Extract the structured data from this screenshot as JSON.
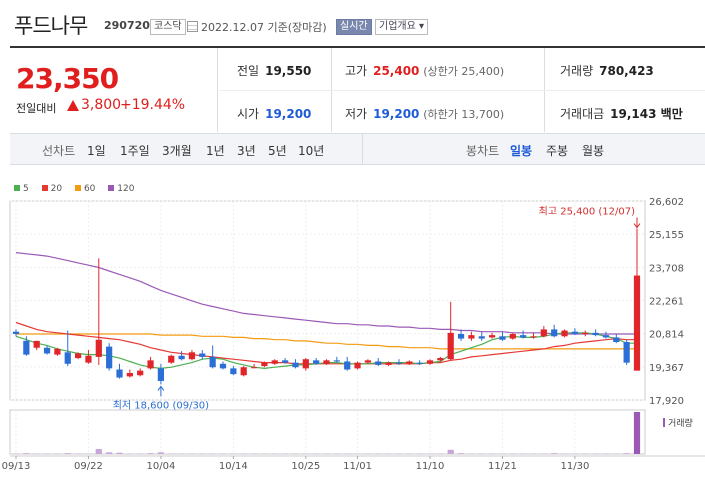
{
  "header": {
    "name": "푸드나무",
    "code": "290720",
    "market": "코스닥",
    "date": "2022.12.07 기준(장마감)",
    "realtime": "실시간",
    "company": "기업개요 ▾"
  },
  "price": {
    "current": "23,350",
    "prev_label": "전일대비",
    "change": "3,800",
    "change_pct": "+19.44%"
  },
  "stats": {
    "prev": {
      "label": "전일",
      "value": "19,550"
    },
    "high": {
      "label": "고가",
      "value": "25,400",
      "sub": "(상한가 25,400)"
    },
    "volume": {
      "label": "거래량",
      "value": "780,423"
    },
    "open": {
      "label": "시가",
      "value": "19,200"
    },
    "low": {
      "label": "저가",
      "value": "19,200",
      "sub": "(하한가 13,700)"
    },
    "amount": {
      "label": "거래대금",
      "value": "19,143 백만"
    }
  },
  "period": {
    "title": "선차트",
    "items": [
      "1일",
      "1주일",
      "3개월",
      "1년",
      "3년",
      "5년",
      "10년"
    ]
  },
  "candle": {
    "title": "봉차트",
    "items": [
      "일봉",
      "주봉",
      "월봉"
    ],
    "active": 0
  },
  "legend": [
    {
      "label": "5",
      "color": "#4caf50"
    },
    {
      "label": "20",
      "color": "#e53935"
    },
    {
      "label": "60",
      "color": "#f39c12"
    },
    {
      "label": "120",
      "color": "#9b59b6"
    }
  ],
  "volume_label": "거래량",
  "chart_data": {
    "type": "candlestick",
    "y_ticks": [
      "26,602",
      "25,155",
      "23,708",
      "22,261",
      "20,814",
      "19,367",
      "17,920"
    ],
    "ylim": [
      17920,
      26602
    ],
    "x_ticks": [
      "09/13",
      "09/22",
      "10/04",
      "10/14",
      "10/25",
      "11/01",
      "11/10",
      "11/21",
      "11/30"
    ],
    "x_tick_index": [
      0,
      7,
      14,
      21,
      28,
      33,
      40,
      47,
      54
    ],
    "high_annotation": "최고 25,400 (12/07)",
    "low_annotation": "최저 18,600 (09/30)",
    "candles": [
      {
        "o": 20900,
        "h": 21000,
        "c": 20800,
        "l": 20700
      },
      {
        "o": 20500,
        "h": 20700,
        "c": 19900,
        "l": 19850
      },
      {
        "o": 20200,
        "h": 20500,
        "c": 20500,
        "l": 20100
      },
      {
        "o": 20200,
        "h": 20300,
        "c": 19950,
        "l": 19900
      },
      {
        "o": 19900,
        "h": 20200,
        "c": 20150,
        "l": 19850
      },
      {
        "o": 20000,
        "h": 20950,
        "c": 19500,
        "l": 19400
      },
      {
        "o": 19750,
        "h": 20000,
        "c": 19950,
        "l": 19700
      },
      {
        "o": 19550,
        "h": 20100,
        "c": 19850,
        "l": 19500
      },
      {
        "o": 19800,
        "h": 24100,
        "c": 20550,
        "l": 19450
      },
      {
        "o": 20250,
        "h": 20400,
        "c": 19300,
        "l": 19200
      },
      {
        "o": 19250,
        "h": 19500,
        "c": 18900,
        "l": 18850
      },
      {
        "o": 18950,
        "h": 19250,
        "c": 19100,
        "l": 18900
      },
      {
        "o": 19000,
        "h": 19300,
        "c": 19200,
        "l": 18950
      },
      {
        "o": 19300,
        "h": 19800,
        "c": 19650,
        "l": 19250
      },
      {
        "o": 19300,
        "h": 19500,
        "c": 18750,
        "l": 18600
      },
      {
        "o": 19550,
        "h": 19900,
        "c": 19850,
        "l": 19500
      },
      {
        "o": 19850,
        "h": 20050,
        "c": 19700,
        "l": 19650
      },
      {
        "o": 19700,
        "h": 20100,
        "c": 20000,
        "l": 19650
      },
      {
        "o": 19950,
        "h": 20100,
        "c": 19800,
        "l": 19700
      },
      {
        "o": 19800,
        "h": 20300,
        "c": 19350,
        "l": 19300
      },
      {
        "o": 19500,
        "h": 19600,
        "c": 19300,
        "l": 19250
      },
      {
        "o": 19300,
        "h": 19400,
        "c": 19050,
        "l": 19000
      },
      {
        "o": 19000,
        "h": 19400,
        "c": 19350,
        "l": 18950
      },
      {
        "o": 19350,
        "h": 19500,
        "c": 19350,
        "l": 19300
      },
      {
        "o": 19400,
        "h": 19600,
        "c": 19550,
        "l": 19350
      },
      {
        "o": 19500,
        "h": 19700,
        "c": 19650,
        "l": 19450
      },
      {
        "o": 19650,
        "h": 19750,
        "c": 19550,
        "l": 19500
      },
      {
        "o": 19550,
        "h": 19700,
        "c": 19350,
        "l": 19300
      },
      {
        "o": 19300,
        "h": 19750,
        "c": 19700,
        "l": 19200
      },
      {
        "o": 19650,
        "h": 19750,
        "c": 19500,
        "l": 19450
      },
      {
        "o": 19500,
        "h": 19700,
        "c": 19650,
        "l": 19450
      },
      {
        "o": 19650,
        "h": 19800,
        "c": 19600,
        "l": 19550
      },
      {
        "o": 19600,
        "h": 19800,
        "c": 19250,
        "l": 19200
      },
      {
        "o": 19300,
        "h": 19600,
        "c": 19550,
        "l": 19250
      },
      {
        "o": 19550,
        "h": 19700,
        "c": 19650,
        "l": 19500
      },
      {
        "o": 19600,
        "h": 19750,
        "c": 19450,
        "l": 19400
      },
      {
        "o": 19450,
        "h": 19600,
        "c": 19550,
        "l": 19400
      },
      {
        "o": 19550,
        "h": 19700,
        "c": 19500,
        "l": 19450
      },
      {
        "o": 19500,
        "h": 19650,
        "c": 19600,
        "l": 19450
      },
      {
        "o": 19550,
        "h": 19650,
        "c": 19500,
        "l": 19450
      },
      {
        "o": 19500,
        "h": 19700,
        "c": 19650,
        "l": 19450
      },
      {
        "o": 19650,
        "h": 19800,
        "c": 19750,
        "l": 19600
      },
      {
        "o": 19700,
        "h": 22200,
        "c": 20850,
        "l": 19650
      },
      {
        "o": 20800,
        "h": 21000,
        "c": 20600,
        "l": 20500
      },
      {
        "o": 20600,
        "h": 20900,
        "c": 20750,
        "l": 20500
      },
      {
        "o": 20700,
        "h": 20900,
        "c": 20600,
        "l": 20500
      },
      {
        "o": 20650,
        "h": 20850,
        "c": 20750,
        "l": 20600
      },
      {
        "o": 20700,
        "h": 20900,
        "c": 20550,
        "l": 20500
      },
      {
        "o": 20600,
        "h": 20850,
        "c": 20800,
        "l": 20550
      },
      {
        "o": 20750,
        "h": 20950,
        "c": 20650,
        "l": 20600
      },
      {
        "o": 20700,
        "h": 20850,
        "c": 20700,
        "l": 20600
      },
      {
        "o": 20700,
        "h": 21150,
        "c": 21000,
        "l": 20650
      },
      {
        "o": 21000,
        "h": 21200,
        "c": 20700,
        "l": 20650
      },
      {
        "o": 20700,
        "h": 21000,
        "c": 20950,
        "l": 20650
      },
      {
        "o": 20900,
        "h": 21050,
        "c": 20800,
        "l": 20750
      },
      {
        "o": 20800,
        "h": 20950,
        "c": 20850,
        "l": 20700
      },
      {
        "o": 20850,
        "h": 21000,
        "c": 20750,
        "l": 20700
      },
      {
        "o": 20750,
        "h": 20900,
        "c": 20650,
        "l": 20600
      },
      {
        "o": 20650,
        "h": 20800,
        "c": 20450,
        "l": 20400
      },
      {
        "o": 20450,
        "h": 20550,
        "c": 19550,
        "l": 19450
      },
      {
        "o": 19200,
        "h": 25400,
        "c": 23350,
        "l": 19200
      }
    ],
    "volumes": [
      0.01,
      0.02,
      0.01,
      0.01,
      0.01,
      0.02,
      0.01,
      0.01,
      0.12,
      0.04,
      0.03,
      0.01,
      0.01,
      0.02,
      0.04,
      0.01,
      0.01,
      0.01,
      0.01,
      0.01,
      0.01,
      0.01,
      0.01,
      0.01,
      0.01,
      0.01,
      0.01,
      0.01,
      0.01,
      0.01,
      0.01,
      0.01,
      0.01,
      0.01,
      0.01,
      0.01,
      0.01,
      0.01,
      0.01,
      0.01,
      0.01,
      0.01,
      0.1,
      0.02,
      0.01,
      0.01,
      0.01,
      0.01,
      0.01,
      0.01,
      0.01,
      0.01,
      0.02,
      0.01,
      0.01,
      0.01,
      0.01,
      0.01,
      0.01,
      0.02,
      1.0
    ],
    "ma5": [
      20700,
      20550,
      20400,
      20300,
      20150,
      20050,
      19950,
      19900,
      19900,
      19850,
      19750,
      19600,
      19450,
      19350,
      19300,
      19350,
      19450,
      19550,
      19700,
      19750,
      19700,
      19550,
      19450,
      19350,
      19300,
      19350,
      19400,
      19450,
      19450,
      19500,
      19550,
      19550,
      19500,
      19500,
      19500,
      19550,
      19550,
      19550,
      19550,
      19500,
      19550,
      19600,
      19900,
      20050,
      20200,
      20350,
      20550,
      20650,
      20700,
      20650,
      20650,
      20700,
      20800,
      20850,
      20850,
      20850,
      20800,
      20700,
      20600,
      20400,
      20400
    ],
    "ma20": [
      21300,
      21150,
      21000,
      20900,
      20850,
      20800,
      20750,
      20700,
      20650,
      20600,
      20550,
      20450,
      20350,
      20200,
      20100,
      20000,
      19950,
      19900,
      19850,
      19800,
      19750,
      19700,
      19650,
      19600,
      19550,
      19550,
      19550,
      19500,
      19500,
      19500,
      19500,
      19500,
      19500,
      19500,
      19500,
      19500,
      19500,
      19500,
      19500,
      19500,
      19550,
      19550,
      19650,
      19700,
      19800,
      19850,
      19900,
      19950,
      20000,
      20050,
      20100,
      20150,
      20250,
      20300,
      20400,
      20450,
      20500,
      20550,
      20600,
      20550,
      20550
    ],
    "ma60": [
      20800,
      20800,
      20800,
      20800,
      20800,
      20800,
      20800,
      20800,
      20800,
      20800,
      20800,
      20800,
      20800,
      20800,
      20750,
      20750,
      20750,
      20750,
      20700,
      20700,
      20700,
      20650,
      20650,
      20600,
      20600,
      20550,
      20550,
      20500,
      20500,
      20450,
      20400,
      20400,
      20350,
      20350,
      20300,
      20300,
      20250,
      20250,
      20200,
      20200,
      20200,
      20150,
      20150,
      20150,
      20150,
      20150,
      20150,
      20150,
      20150,
      20150,
      20150,
      20150,
      20150,
      20150,
      20150,
      20150,
      20150,
      20150,
      20150,
      20150,
      20150
    ],
    "ma120": [
      24350,
      24300,
      24250,
      24200,
      24100,
      24000,
      23900,
      23800,
      23700,
      23550,
      23400,
      23250,
      23100,
      22900,
      22700,
      22550,
      22400,
      22250,
      22100,
      22000,
      21900,
      21800,
      21700,
      21650,
      21600,
      21550,
      21500,
      21450,
      21400,
      21350,
      21300,
      21250,
      21250,
      21200,
      21200,
      21150,
      21150,
      21100,
      21100,
      21050,
      21050,
      21000,
      21000,
      20950,
      20950,
      20900,
      20900,
      20900,
      20850,
      20850,
      20850,
      20850,
      20800,
      20800,
      20800,
      20800,
      20800,
      20800,
      20800,
      20800,
      20800
    ]
  }
}
